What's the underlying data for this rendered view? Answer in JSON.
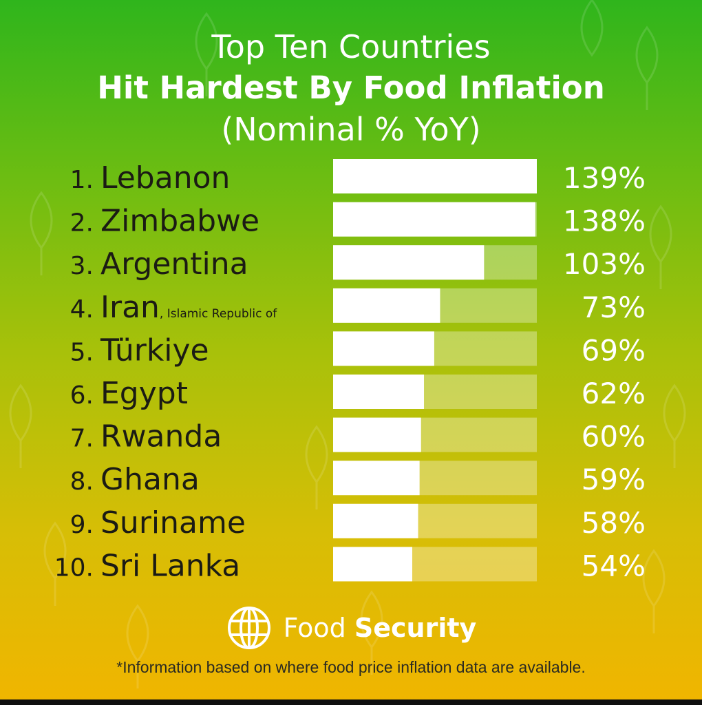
{
  "title_line1": "Top Ten Countries",
  "title_line2": "Hit Hardest By Food Inflation",
  "title_line3": "(Nominal % YoY)",
  "colors": {
    "bar_fill": "#ffffff",
    "bar_track": "rgba(255,255,255,0.32)",
    "label_text": "#1b1b14",
    "value_text": "#ffffff"
  },
  "chart_data": {
    "type": "bar",
    "orientation": "horizontal",
    "title": "Top Ten Countries Hit Hardest By Food Inflation",
    "subtitle": "(Nominal % YoY)",
    "categories": [
      "Lebanon",
      "Zimbabwe",
      "Argentina",
      "Iran",
      "Türkiye",
      "Egypt",
      "Rwanda",
      "Ghana",
      "Suriname",
      "Sri Lanka"
    ],
    "ranks": [
      "1.",
      "2.",
      "3.",
      "4.",
      "5.",
      "6.",
      "7.",
      "8.",
      "9.",
      "10."
    ],
    "qualifiers": [
      "",
      "",
      "",
      ", Islamic Republic of",
      "",
      "",
      "",
      "",
      "",
      ""
    ],
    "values": [
      139,
      138,
      103,
      73,
      69,
      62,
      60,
      59,
      58,
      54
    ],
    "value_labels": [
      "139%",
      "138%",
      "103%",
      "73%",
      "69%",
      "62%",
      "60%",
      "59%",
      "58%",
      "54%"
    ],
    "xlim": [
      0,
      139
    ],
    "grid": false,
    "legend": "none"
  },
  "footer": {
    "brand_light": "Food",
    "brand_bold": "Security",
    "icon": "globe-icon",
    "note": "*Information based on where food price inflation data are available."
  }
}
